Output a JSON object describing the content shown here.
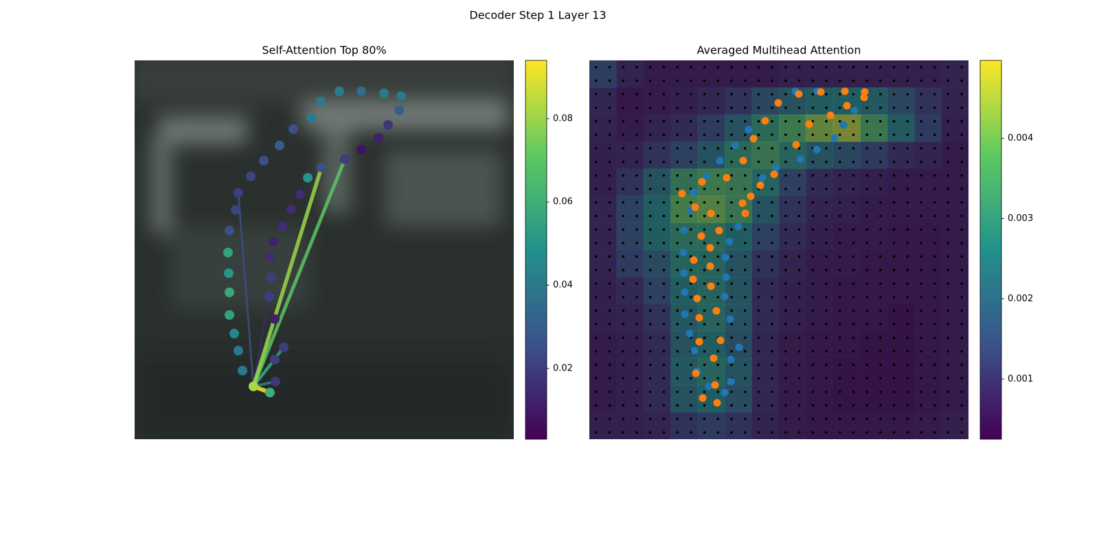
{
  "title": "Decoder Step 1 Layer 13",
  "chart_data": [
    {
      "type": "scatter",
      "title": "Self-Attention Top 80%",
      "xlim": [
        0,
        552
      ],
      "ylim": [
        552,
        0
      ],
      "colormap": "viridis",
      "clim": [
        0.003,
        0.094
      ],
      "cticks": [
        0.02,
        0.04,
        0.06,
        0.08
      ],
      "x": [
        157,
        151,
        145,
        138,
        138,
        137,
        136,
        138,
        147,
        151,
        169,
        188,
        211,
        231,
        257,
        271,
        298,
        330,
        363,
        388,
        385,
        369,
        355,
        330,
        306,
        272,
        252,
        241,
        228,
        215,
        202,
        197,
        199,
        196,
        204,
        217,
        204,
        205,
        197,
        173
      ],
      "y": [
        452,
        423,
        398,
        371,
        338,
        310,
        280,
        248,
        218,
        193,
        169,
        146,
        124,
        100,
        84,
        60,
        45,
        45,
        48,
        52,
        73,
        94,
        113,
        130,
        144,
        156,
        171,
        195,
        217,
        242,
        264,
        287,
        316,
        344,
        377,
        418,
        436,
        468,
        484,
        475
      ],
      "values": [
        0.04,
        0.04,
        0.045,
        0.055,
        0.058,
        0.05,
        0.055,
        0.025,
        0.022,
        0.02,
        0.022,
        0.025,
        0.03,
        0.025,
        0.04,
        0.04,
        0.04,
        0.035,
        0.04,
        0.04,
        0.03,
        0.018,
        0.012,
        0.008,
        0.02,
        0.025,
        0.05,
        0.015,
        0.015,
        0.015,
        0.012,
        0.015,
        0.02,
        0.02,
        0.012,
        0.02,
        0.02,
        0.018,
        0.06,
        0.082
      ],
      "links": {
        "source": 39,
        "targets": [
          9,
          33,
          34,
          37,
          36,
          35,
          24,
          25,
          38
        ],
        "weights": [
          0.025,
          0.015,
          0.03,
          0.045,
          0.05,
          0.055,
          0.07,
          0.08,
          0.094
        ]
      }
    },
    {
      "type": "heatmap",
      "title": "Averaged Multihead Attention",
      "xlim": [
        0,
        552
      ],
      "ylim": [
        552,
        0
      ],
      "colormap": "viridis",
      "clim": [
        0.00025,
        0.00497
      ],
      "cticks": [
        0.001,
        0.002,
        0.003,
        0.004
      ],
      "z": [
        [
          0.0015,
          0.0008,
          0.0006,
          0.0006,
          0.0006,
          0.0006,
          0.0006,
          0.0007,
          0.0007,
          0.0007,
          0.0007,
          0.0007,
          0.0007,
          0.0008
        ],
        [
          0.0009,
          0.0005,
          0.0006,
          0.0007,
          0.0009,
          0.0012,
          0.0018,
          0.0022,
          0.0025,
          0.0026,
          0.0024,
          0.0018,
          0.0012,
          0.0008
        ],
        [
          0.0008,
          0.0006,
          0.0008,
          0.001,
          0.0014,
          0.0022,
          0.003,
          0.0036,
          0.0042,
          0.0045,
          0.0035,
          0.0025,
          0.0014,
          0.0007
        ],
        [
          0.0007,
          0.0008,
          0.0012,
          0.0016,
          0.0022,
          0.003,
          0.0034,
          0.0028,
          0.0022,
          0.0018,
          0.0014,
          0.001,
          0.0008,
          0.0006
        ],
        [
          0.0007,
          0.0012,
          0.0022,
          0.0032,
          0.0036,
          0.0034,
          0.0028,
          0.0016,
          0.001,
          0.0008,
          0.0007,
          0.0006,
          0.0006,
          0.0006
        ],
        [
          0.0008,
          0.0016,
          0.0026,
          0.0038,
          0.004,
          0.0034,
          0.0022,
          0.0012,
          0.0008,
          0.0007,
          0.0006,
          0.0006,
          0.0006,
          0.0006
        ],
        [
          0.0008,
          0.0016,
          0.0026,
          0.003,
          0.003,
          0.0026,
          0.0016,
          0.001,
          0.0007,
          0.0006,
          0.0006,
          0.0005,
          0.0005,
          0.0006
        ],
        [
          0.0008,
          0.0014,
          0.002,
          0.0028,
          0.0028,
          0.0022,
          0.0012,
          0.0008,
          0.0006,
          0.0006,
          0.0005,
          0.0005,
          0.0005,
          0.0006
        ],
        [
          0.0007,
          0.001,
          0.0016,
          0.0026,
          0.0028,
          0.0022,
          0.001,
          0.0007,
          0.0006,
          0.0005,
          0.0005,
          0.0005,
          0.0005,
          0.0006
        ],
        [
          0.0007,
          0.0008,
          0.0012,
          0.0024,
          0.0028,
          0.0022,
          0.001,
          0.0007,
          0.0006,
          0.0005,
          0.0005,
          0.0004,
          0.0005,
          0.0006
        ],
        [
          0.0006,
          0.0007,
          0.001,
          0.0022,
          0.0026,
          0.002,
          0.0009,
          0.0006,
          0.0005,
          0.0005,
          0.0004,
          0.0004,
          0.0005,
          0.0006
        ],
        [
          0.0006,
          0.0007,
          0.001,
          0.0024,
          0.0028,
          0.0022,
          0.0009,
          0.0006,
          0.0005,
          0.0004,
          0.0004,
          0.0004,
          0.0005,
          0.0006
        ],
        [
          0.0006,
          0.0007,
          0.001,
          0.0022,
          0.0026,
          0.002,
          0.0009,
          0.0006,
          0.0005,
          0.0004,
          0.0004,
          0.0004,
          0.0005,
          0.0006
        ],
        [
          0.0007,
          0.0007,
          0.0008,
          0.0012,
          0.0014,
          0.0012,
          0.0008,
          0.0006,
          0.0005,
          0.0005,
          0.0005,
          0.0005,
          0.0006,
          0.0007
        ]
      ],
      "series": [
        {
          "color": "#1f77b4",
          "x": [
            300,
            332,
            386,
            370,
            357,
            331,
            307,
            272,
            252,
            232,
            212,
            190,
            170,
            152,
            148,
            138,
            137,
            138,
            139,
            139,
            146,
            153,
            157,
            174,
            197,
            206,
            206,
            218,
            205,
            197,
            199,
            198,
            204,
            217
          ],
          "y": [
            45,
            45,
            73,
            94,
            113,
            130,
            144,
            156,
            171,
            101,
            124,
            146,
            169,
            192,
            219,
            248,
            280,
            310,
            338,
            370,
            398,
            423,
            453,
            475,
            484,
            468,
            436,
            418,
            377,
            344,
            316,
            287,
            264,
            242
          ]
        },
        {
          "color": "#ff7f0e",
          "x": [
            305,
            337,
            372,
            401,
            400,
            375,
            351,
            320,
            301,
            269,
            249,
            235,
            223,
            227,
            256,
            239,
            224,
            200,
            164,
            135,
            154,
            177,
            189,
            163,
            176,
            152,
            176,
            151,
            177,
            157,
            185,
            160,
            191,
            160,
            181,
            155,
            183,
            165,
            186,
            275
          ],
          "y": [
            49,
            46,
            45,
            46,
            54,
            66,
            80,
            93,
            123,
            166,
            182,
            198,
            208,
            223,
            88,
            114,
            146,
            171,
            177,
            194,
            214,
            223,
            248,
            256,
            273,
            291,
            300,
            319,
            329,
            347,
            365,
            375,
            408,
            410,
            434,
            456,
            473,
            492,
            499,
            62
          ]
        }
      ]
    }
  ]
}
